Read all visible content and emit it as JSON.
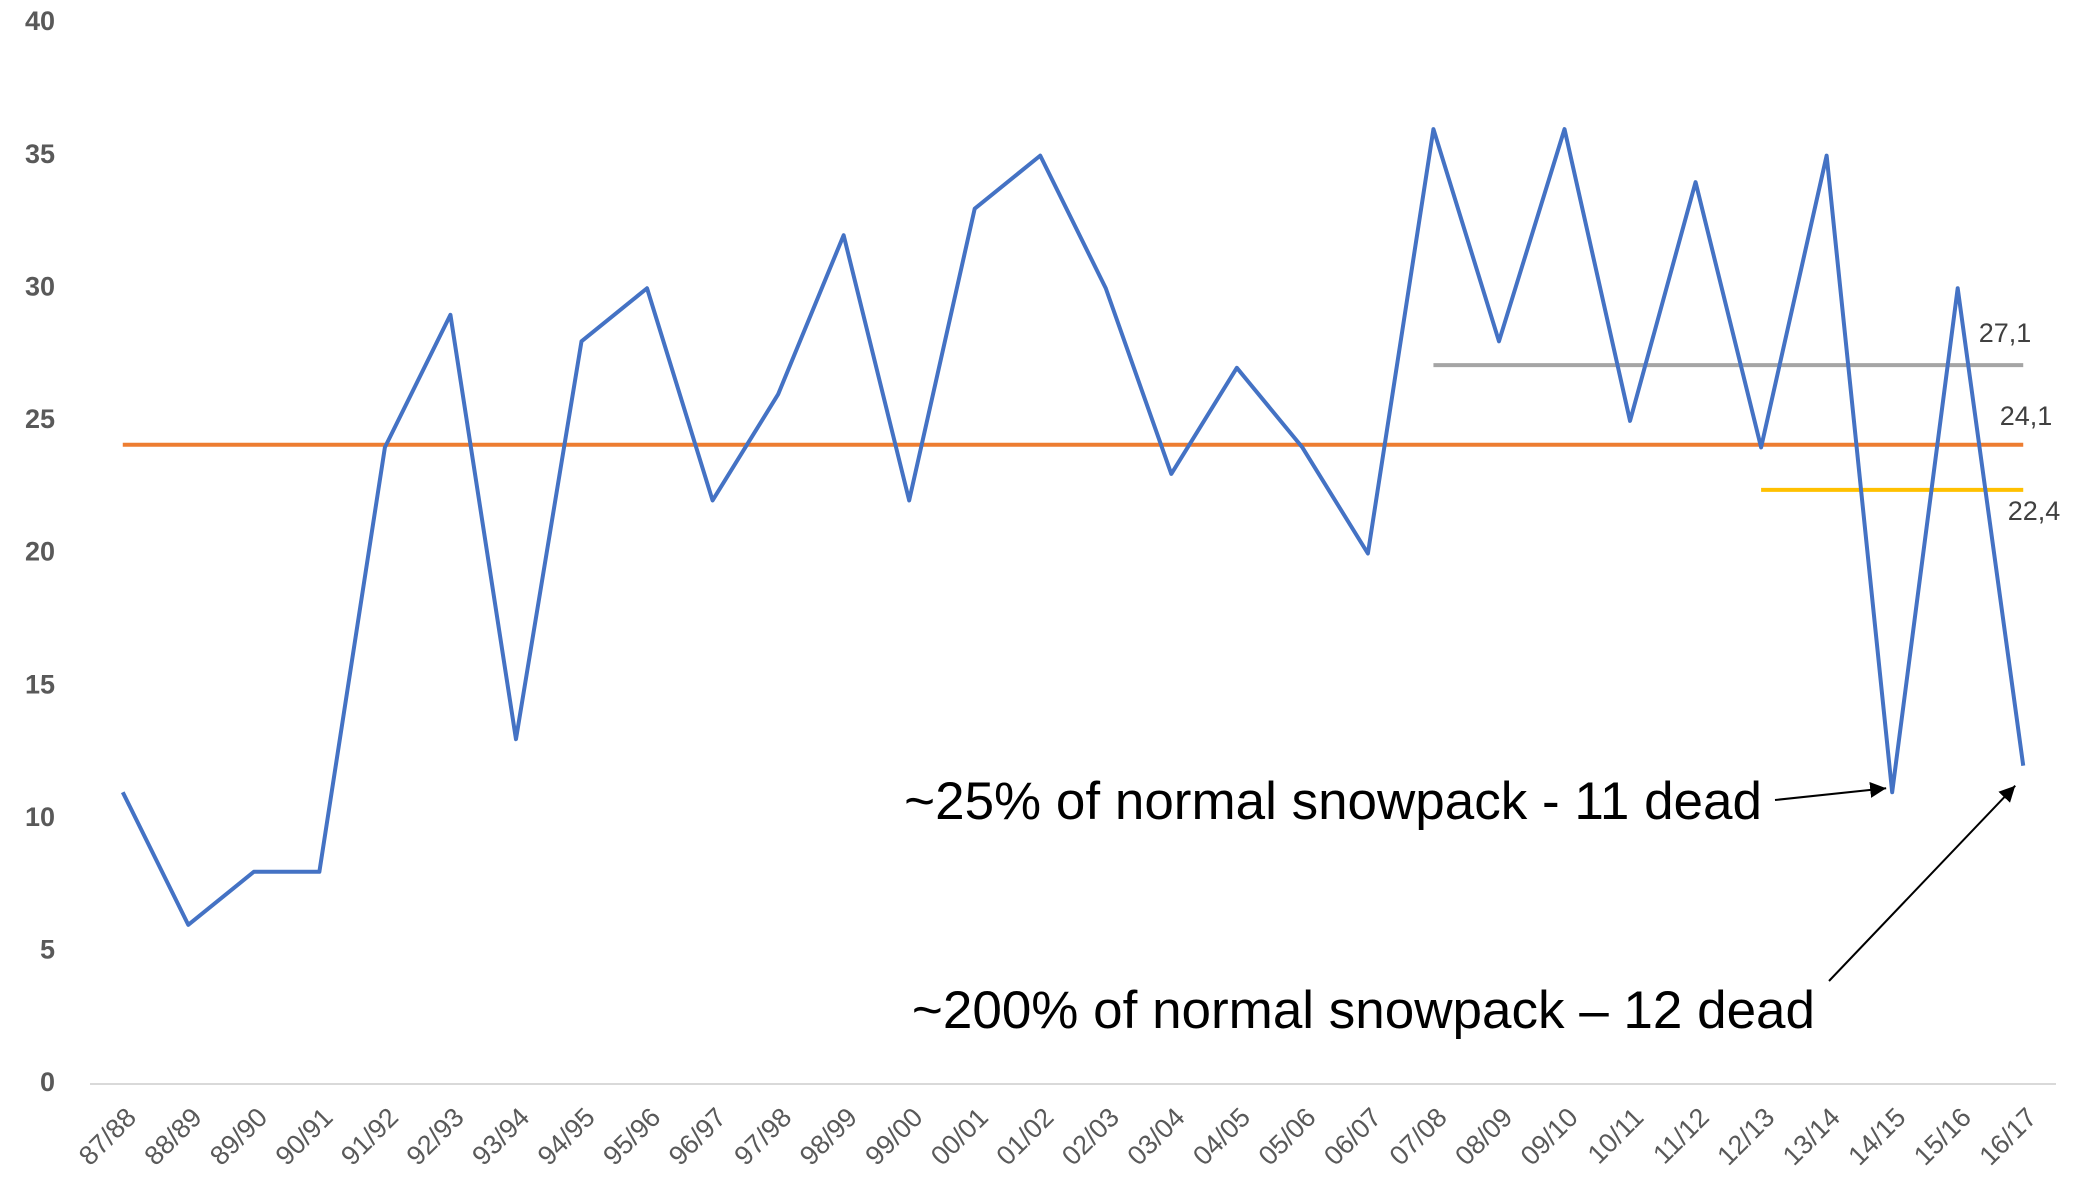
{
  "chart_data": {
    "type": "line",
    "categories": [
      "87/88",
      "88/89",
      "89/90",
      "90/91",
      "91/92",
      "92/93",
      "93/94",
      "94/95",
      "95/96",
      "96/97",
      "97/98",
      "98/99",
      "99/00",
      "00/01",
      "01/02",
      "02/03",
      "03/04",
      "04/05",
      "05/06",
      "06/07",
      "07/08",
      "08/09",
      "09/10",
      "10/11",
      "11/12",
      "12/13",
      "13/14",
      "14/15",
      "15/16",
      "16/17"
    ],
    "series": [
      {
        "color": "#4472c4",
        "values": [
          11,
          6,
          8,
          8,
          24,
          29,
          13,
          28,
          30,
          22,
          26,
          32,
          22,
          33,
          35,
          30,
          23,
          27,
          24,
          20,
          36,
          28,
          36,
          25,
          34,
          24,
          35,
          11,
          30,
          12
        ]
      }
    ],
    "reference_lines": [
      {
        "value": 27.1,
        "value_label": "27,1",
        "color": "#a5a5a5",
        "start": "07/08",
        "end": "16/17"
      },
      {
        "value": 24.1,
        "value_label": "24,1",
        "color": "#ed7d31",
        "start": "87/88",
        "end": "16/17"
      },
      {
        "value": 22.4,
        "value_label": "22,4",
        "color": "#ffc000",
        "start": "12/13",
        "end": "16/17"
      }
    ],
    "annotations": [
      {
        "text": "~25% of normal snowpack - 11 dead",
        "target": "14/15"
      },
      {
        "text": "~200% of normal snowpack – 12 dead",
        "target": "16/17"
      }
    ],
    "ylim": [
      0,
      40
    ],
    "yticks": [
      0,
      5,
      10,
      15,
      20,
      25,
      30,
      35,
      40
    ],
    "grid": false
  }
}
